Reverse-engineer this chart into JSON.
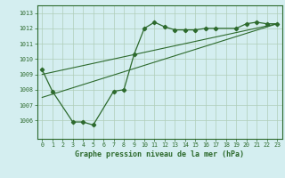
{
  "main_x": [
    0,
    1,
    3,
    4,
    5,
    7,
    8,
    9,
    10,
    11,
    12,
    13,
    14,
    15,
    16,
    17,
    19,
    20,
    21,
    22,
    23
  ],
  "main_y": [
    1009.3,
    1007.9,
    1005.9,
    1005.9,
    1005.7,
    1007.9,
    1008.0,
    1010.3,
    1012.0,
    1012.4,
    1012.1,
    1011.9,
    1011.9,
    1011.9,
    1012.0,
    1012.0,
    1012.0,
    1012.3,
    1012.4,
    1012.3,
    1012.3
  ],
  "trend1_x": [
    0,
    23
  ],
  "trend1_y": [
    1007.5,
    1012.3
  ],
  "trend2_x": [
    0,
    23
  ],
  "trend2_y": [
    1009.0,
    1012.3
  ],
  "line_color": "#2d6a2d",
  "bg_color": "#d4eef0",
  "grid_color": "#b0cdb8",
  "xlabel": "Graphe pression niveau de la mer (hPa)",
  "ylim_min": 1004.8,
  "ylim_max": 1013.5,
  "xlim_min": -0.5,
  "xlim_max": 23.5,
  "yticks": [
    1006,
    1007,
    1008,
    1009,
    1010,
    1011,
    1012,
    1013
  ],
  "xticks": [
    0,
    1,
    2,
    3,
    4,
    5,
    6,
    7,
    8,
    9,
    10,
    11,
    12,
    13,
    14,
    15,
    16,
    17,
    18,
    19,
    20,
    21,
    22,
    23
  ],
  "xlabel_fontsize": 6.0,
  "tick_fontsize": 4.8
}
